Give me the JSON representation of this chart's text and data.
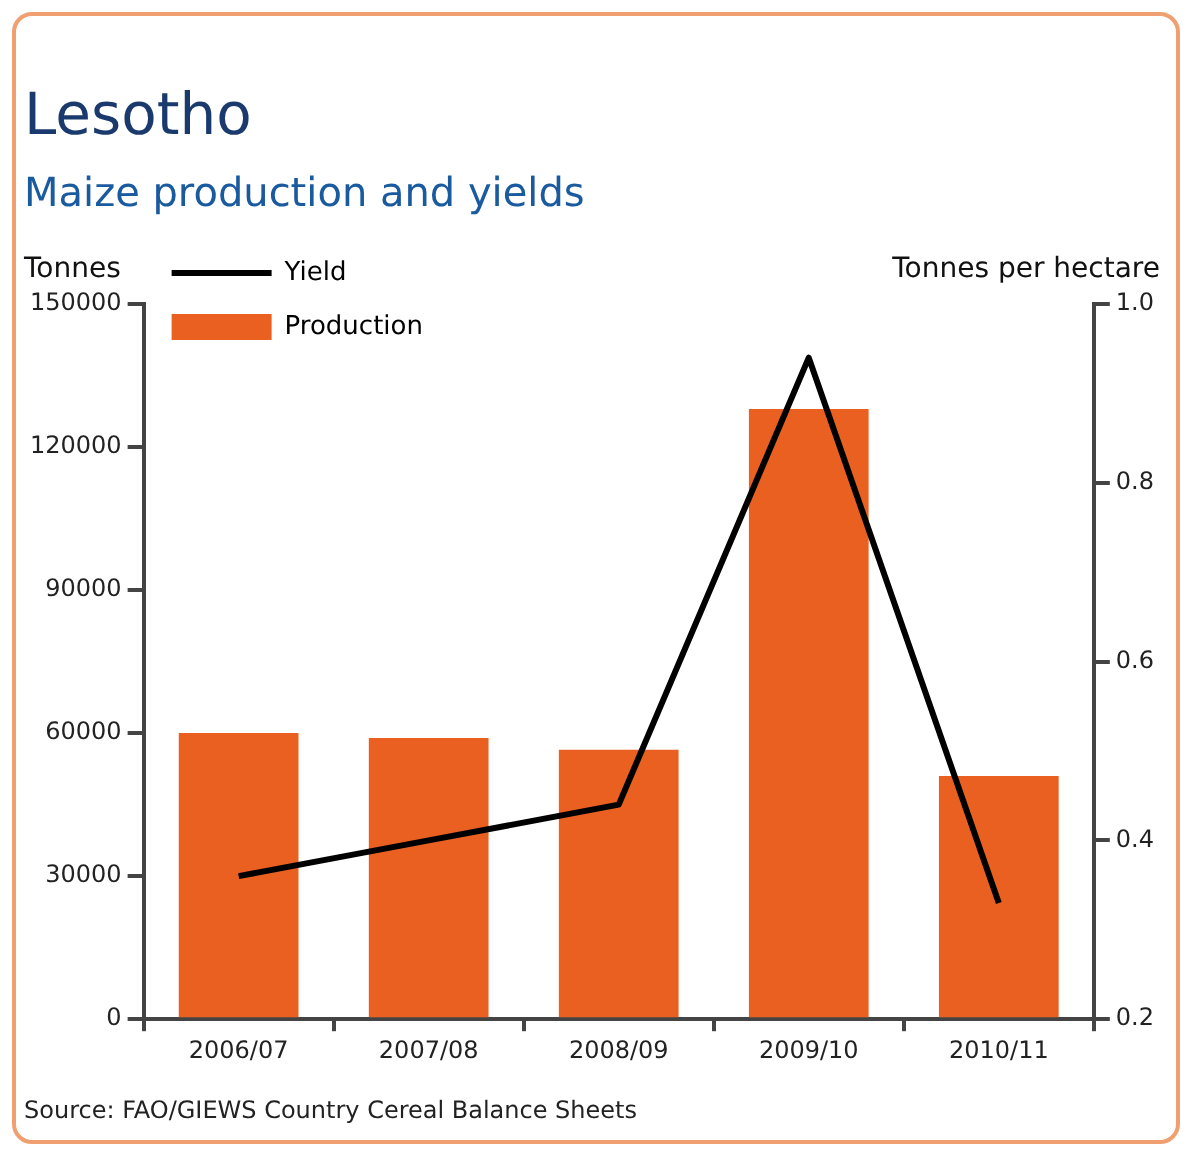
{
  "chart_data": {
    "type": "bar",
    "title": "Lesotho",
    "subtitle": "Maize production and yields",
    "ylabel": "Tonnes",
    "y2label": "Tonnes per hectare",
    "categories": [
      "2006/07",
      "2007/08",
      "2008/09",
      "2009/10",
      "2010/11"
    ],
    "series": [
      {
        "name": "Yield",
        "type": "line",
        "axis": "y2",
        "color": "#000000",
        "values": [
          0.36,
          0.4,
          0.44,
          0.94,
          0.33
        ]
      },
      {
        "name": "Production",
        "color": "#ea6020",
        "values": [
          60000,
          59000,
          56500,
          128000,
          51000
        ]
      }
    ],
    "ylim": [
      0,
      150000
    ],
    "yticks": [
      0,
      30000,
      60000,
      90000,
      120000,
      150000
    ],
    "y2lim": [
      0.2,
      1.0
    ],
    "y2ticks": [
      {
        "value": 0.2,
        "label": "0.2"
      },
      {
        "value": 0.4,
        "label": "0.4"
      },
      {
        "value": 0.6,
        "label": "0.6"
      },
      {
        "value": 0.8,
        "label": "0.8"
      },
      {
        "value": 1.0,
        "label": "1.0"
      }
    ],
    "grid": false,
    "legend": "top left",
    "marker": "none",
    "annotations": [
      "Source: FAO/GIEWS Country Cereal Balance Sheets"
    ]
  }
}
